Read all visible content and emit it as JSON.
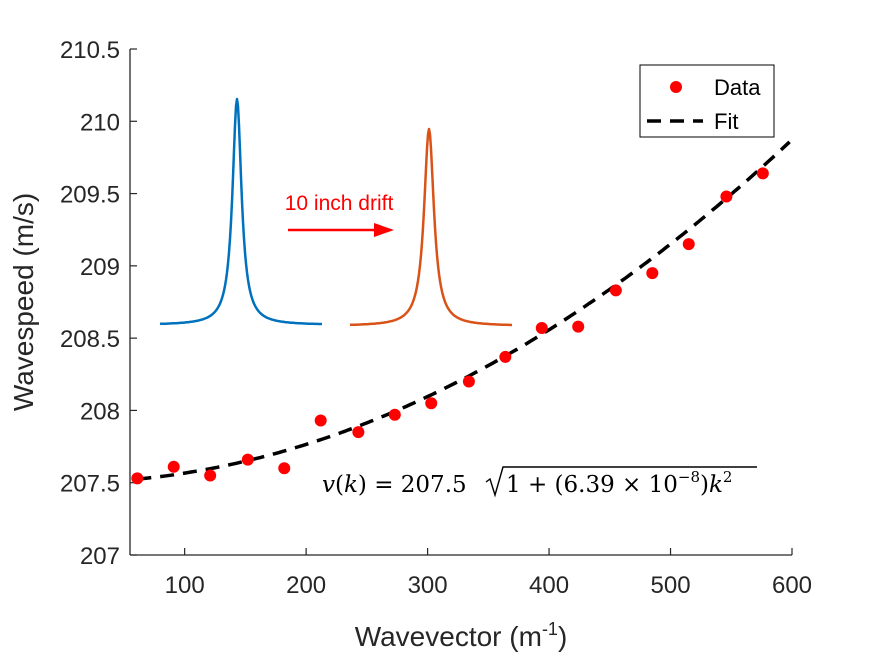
{
  "chart_data": {
    "type": "scatter",
    "xlabel": "Wavevector (m",
    "xlabel_superscript": "-1",
    "xlabel_suffix": ")",
    "ylabel": "Wavespeed (m/s)",
    "xlim": [
      55,
      600
    ],
    "ylim": [
      207,
      210.5
    ],
    "xticks": [
      100,
      200,
      300,
      400,
      500,
      600
    ],
    "yticks": [
      207,
      207.5,
      208,
      208.5,
      209,
      209.5,
      210,
      210.5
    ],
    "ytick_labels": [
      "207",
      "207.5",
      "208",
      "208.5",
      "209",
      "209.5",
      "210",
      "210.5"
    ],
    "grid": false,
    "legend_position": "top-right",
    "series": [
      {
        "name": "Data",
        "style": "markers",
        "color": "#ff0000",
        "x": [
          61,
          91,
          121,
          152,
          182,
          212,
          243,
          273,
          303,
          334,
          364,
          394,
          424,
          455,
          485,
          515,
          546,
          576
        ],
        "y": [
          207.53,
          207.61,
          207.55,
          207.66,
          207.6,
          207.93,
          207.85,
          207.97,
          208.05,
          208.2,
          208.37,
          208.57,
          208.58,
          208.83,
          208.95,
          209.15,
          209.48,
          209.64
        ]
      },
      {
        "name": "Fit",
        "style": "dashed-line",
        "color": "#000000",
        "function": "207.5*sqrt(1+6.39e-8*k^2)",
        "x_range": [
          61,
          600
        ]
      }
    ],
    "annotations": {
      "drift_label": "10 inch drift",
      "drift_color": "#ff0000",
      "formula_lhs": "v(k) = 207.5",
      "formula_radicand": "1 + (6.39 × 10",
      "formula_exponent": "−8",
      "formula_tail": ")k",
      "formula_k_exponent": "2",
      "inset_colors": [
        "#0072bd",
        "#d95319"
      ]
    }
  }
}
